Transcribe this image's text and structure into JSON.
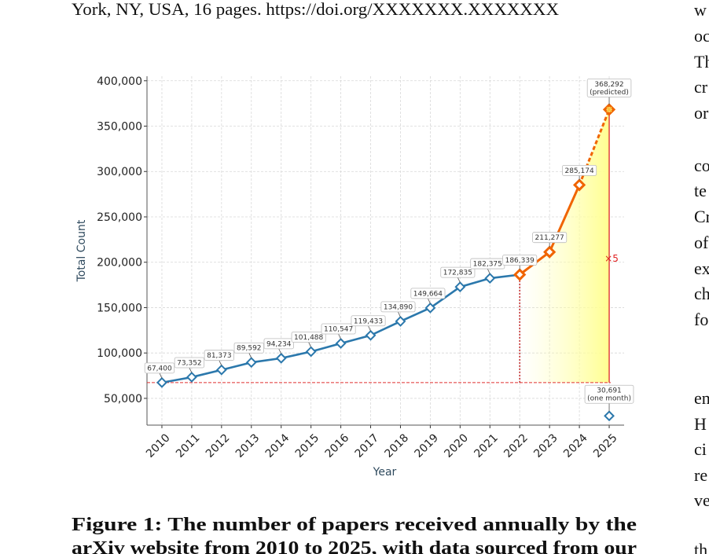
{
  "header": {
    "text": "York, NY, USA, 16 pages. https://doi.org/XXXXXXX.XXXXXXX"
  },
  "chart_data": {
    "type": "line",
    "xlabel": "Year",
    "ylabel": "Total Count",
    "categories": [
      "2010",
      "2011",
      "2012",
      "2013",
      "2014",
      "2015",
      "2016",
      "2017",
      "2018",
      "2019",
      "2020",
      "2021",
      "2022",
      "2023",
      "2024",
      "2025"
    ],
    "series": [
      {
        "color": "#2b78ac",
        "line": "solid",
        "marker": "diamond",
        "values": [
          67400,
          73352,
          81373,
          89592,
          94234,
          101488,
          110547,
          119433,
          134890,
          149664,
          172835,
          182375,
          186339,
          null,
          null,
          null
        ],
        "value_labels": [
          "67,400",
          "73,352",
          "81,373",
          "89,592",
          "94,234",
          "101,488",
          "110,547",
          "119,433",
          "134,890",
          "149,664",
          "172,835",
          "182,375",
          null,
          null,
          null,
          null
        ]
      },
      {
        "color": "#f06400",
        "line": "solid",
        "marker": "diamond",
        "values": [
          null,
          null,
          null,
          null,
          null,
          null,
          null,
          null,
          null,
          null,
          null,
          null,
          186339,
          211277,
          285174,
          null
        ],
        "value_labels": [
          null,
          null,
          null,
          null,
          null,
          null,
          null,
          null,
          null,
          null,
          null,
          null,
          "186,339",
          "211,277",
          "285,174",
          null
        ]
      },
      {
        "color": "#f06400",
        "line": "dashed",
        "marker": "diamond-x",
        "values": [
          null,
          null,
          null,
          null,
          null,
          null,
          null,
          null,
          null,
          null,
          null,
          null,
          null,
          null,
          null,
          368292
        ],
        "value_labels": [
          null,
          null,
          null,
          null,
          null,
          null,
          null,
          null,
          null,
          null,
          null,
          null,
          null,
          null,
          null,
          "368,292"
        ],
        "value_notes": [
          null,
          null,
          null,
          null,
          null,
          null,
          null,
          null,
          null,
          null,
          null,
          null,
          null,
          null,
          null,
          "(predicted)"
        ]
      },
      {
        "color": "#2b78ac",
        "line": "none",
        "marker": "diamond",
        "values": [
          null,
          null,
          null,
          null,
          null,
          null,
          null,
          null,
          null,
          null,
          null,
          null,
          null,
          null,
          null,
          30691
        ],
        "value_labels": [
          null,
          null,
          null,
          null,
          null,
          null,
          null,
          null,
          null,
          null,
          null,
          null,
          null,
          null,
          null,
          "30,691"
        ],
        "value_notes": [
          null,
          null,
          null,
          null,
          null,
          null,
          null,
          null,
          null,
          null,
          null,
          null,
          null,
          null,
          null,
          "(one month)"
        ]
      }
    ],
    "ylim": [
      20500,
      405000
    ],
    "yticks": [
      {
        "value": 50000,
        "label": "50,000"
      },
      {
        "value": 100000,
        "label": "100,000"
      },
      {
        "value": 150000,
        "label": "150,000"
      },
      {
        "value": 200000,
        "label": "200,000"
      },
      {
        "value": 250000,
        "label": "250,000"
      },
      {
        "value": 300000,
        "label": "300,000"
      },
      {
        "value": 350000,
        "label": "350,000"
      },
      {
        "value": 400000,
        "label": "400,000"
      }
    ],
    "grid": true,
    "reference_line": 67400,
    "reference_color": "#e03030",
    "ratio_label": "×5"
  },
  "caption": {
    "lines": [
      "Figure 1: The number of papers received annually by the",
      "arXiv website from 2010 to 2025, with data sourced from our"
    ]
  },
  "side_column": {
    "fragments": [
      "w",
      "oc",
      "Th",
      "cr",
      "or",
      "co",
      "te",
      "Cr",
      "of",
      "ex",
      "ch",
      "fo",
      "en",
      "H",
      "ci",
      "re",
      "ve",
      "th"
    ]
  }
}
